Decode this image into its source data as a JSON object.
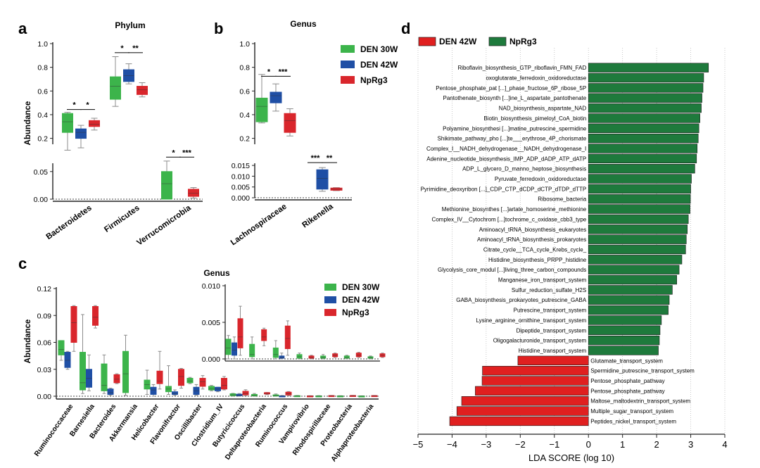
{
  "colors": {
    "den30w": "#3cb44b",
    "den42w": "#1f4fa5",
    "nprg3": "#d9262c",
    "lda_den42w": "#e02020",
    "lda_nprg3": "#1e7a3c"
  },
  "chart_data": [
    {
      "panel": "a",
      "type": "box",
      "title": "Phylum",
      "ylabel": "Abundance",
      "series_names": [
        "DEN 30W",
        "DEN 42W",
        "NpRg3"
      ],
      "upper_ticks": [
        "1.0",
        "0.8",
        "0.6",
        "0.4",
        "0.2"
      ],
      "lower_ticks": [
        "0.05",
        "0.00"
      ],
      "ylim_upper": [
        0.15,
        1.0
      ],
      "ylim_lower": [
        0.0,
        0.065
      ],
      "categories": [
        "Bacteroidetes",
        "Firmicutes",
        "Verrucomicrobia"
      ],
      "segment": [
        "upper",
        "upper",
        "lower"
      ],
      "boxes": [
        [
          {
            "min": 0.1,
            "q1": 0.25,
            "med": 0.34,
            "q3": 0.41,
            "max": 0.42
          },
          {
            "min": 0.12,
            "q1": 0.2,
            "med": 0.25,
            "q3": 0.28,
            "max": 0.31
          },
          {
            "min": 0.27,
            "q1": 0.3,
            "med": 0.32,
            "q3": 0.35,
            "max": 0.37
          }
        ],
        [
          {
            "min": 0.47,
            "q1": 0.53,
            "med": 0.64,
            "q3": 0.72,
            "max": 0.89
          },
          {
            "min": 0.66,
            "q1": 0.68,
            "med": 0.73,
            "q3": 0.78,
            "max": 0.83
          },
          {
            "min": 0.55,
            "q1": 0.57,
            "med": 0.61,
            "q3": 0.64,
            "max": 0.67
          }
        ],
        [
          {
            "min": 0.0,
            "q1": 0.0,
            "med": 0.028,
            "q3": 0.05,
            "max": 0.069
          },
          null,
          {
            "min": 0.002,
            "q1": 0.005,
            "med": 0.011,
            "q3": 0.018,
            "max": 0.021
          }
        ]
      ],
      "significance": [
        {
          "cat": 0,
          "pair": [
            0,
            1
          ],
          "label": "*",
          "y": 0.42,
          "seg": "upper"
        },
        {
          "cat": 0,
          "pair": [
            1,
            2
          ],
          "label": "*",
          "y": 0.42,
          "seg": "upper"
        },
        {
          "cat": 1,
          "pair": [
            0,
            1
          ],
          "label": "*",
          "y": 0.9,
          "seg": "upper"
        },
        {
          "cat": 1,
          "pair": [
            1,
            2
          ],
          "label": "**",
          "y": 0.9,
          "seg": "upper"
        },
        {
          "cat": 2,
          "pair": [
            0,
            1
          ],
          "label": "*",
          "y": 0.071,
          "seg": "lower"
        },
        {
          "cat": 2,
          "pair": [
            1,
            2
          ],
          "label": "***",
          "y": 0.071,
          "seg": "lower"
        }
      ]
    },
    {
      "panel": "b",
      "type": "box",
      "title": "Genus",
      "series_names": [
        "DEN 30W",
        "DEN 42W",
        "NpRg3"
      ],
      "upper_ticks": [
        "1.0",
        "0.8",
        "0.6",
        "0.4",
        "0.2"
      ],
      "lower_ticks": [
        "0.015",
        "0.010",
        "0.005",
        "0.000"
      ],
      "ylim_upper": [
        0.15,
        1.0
      ],
      "ylim_lower": [
        0.0,
        0.016
      ],
      "categories": [
        "Lachnospiraceae",
        "Rikenella"
      ],
      "segment": [
        "upper",
        "lower"
      ],
      "boxes": [
        [
          {
            "min": 0.33,
            "q1": 0.34,
            "med": 0.47,
            "q3": 0.54,
            "max": 0.74
          },
          {
            "min": 0.43,
            "q1": 0.5,
            "med": 0.56,
            "q3": 0.59,
            "max": 0.66
          },
          {
            "min": 0.22,
            "q1": 0.25,
            "med": 0.35,
            "q3": 0.41,
            "max": 0.45
          }
        ],
        [
          null,
          {
            "min": 0.003,
            "q1": 0.004,
            "med": 0.009,
            "q3": 0.013,
            "max": 0.014
          },
          {
            "min": 0.0033,
            "q1": 0.0035,
            "med": 0.004,
            "q3": 0.0045,
            "max": 0.0047
          }
        ]
      ],
      "significance": [
        {
          "cat": 0,
          "pair": [
            0,
            1
          ],
          "label": "*",
          "y": 0.7,
          "seg": "upper"
        },
        {
          "cat": 0,
          "pair": [
            1,
            2
          ],
          "label": "***",
          "y": 0.7,
          "seg": "upper"
        },
        {
          "cat": 1,
          "pair": [
            0,
            1
          ],
          "label": "***",
          "y": 0.015,
          "seg": "lower"
        },
        {
          "cat": 1,
          "pair": [
            1,
            2
          ],
          "label": "**",
          "y": 0.015,
          "seg": "lower"
        }
      ]
    },
    {
      "panel": "c",
      "type": "box",
      "ylabel": "Abundance",
      "series_names": [
        "DEN 30W",
        "DEN 42W",
        "NpRg3"
      ],
      "ticks": [
        "0.12",
        "0.09",
        "0.06",
        "0.03",
        "0.00"
      ],
      "ylim": [
        0,
        0.12
      ],
      "categories": [
        "Ruminococcaceae",
        "Barnesiella",
        "Bacteroides",
        "Akkermansia",
        "Helicobacter",
        "Flavonifractor",
        "Oscillibacter",
        "Clostridium_IV",
        "Butyricicoccus",
        "Deltaproteobacteria",
        "Ruminococcus",
        "Vampirovibrio",
        "Rhodospirillaceae",
        "Proteobacteria",
        "Alphaproteobacteria"
      ],
      "boxes": [
        [
          {
            "min": 0.04,
            "q1": 0.046,
            "med": 0.052,
            "q3": 0.062,
            "max": 0.062
          },
          {
            "min": 0.03,
            "q1": 0.032,
            "med": 0.04,
            "q3": 0.049,
            "max": 0.05
          },
          {
            "min": 0.05,
            "q1": 0.06,
            "med": 0.082,
            "q3": 0.1,
            "max": 0.101
          }
        ],
        [
          {
            "min": 0.003,
            "q1": 0.007,
            "med": 0.015,
            "q3": 0.049,
            "max": 0.091
          },
          {
            "min": 0.006,
            "q1": 0.01,
            "med": 0.02,
            "q3": 0.03,
            "max": 0.046
          },
          {
            "min": 0.076,
            "q1": 0.079,
            "med": 0.088,
            "q3": 0.1,
            "max": 0.101
          }
        ],
        [
          {
            "min": 0.003,
            "q1": 0.006,
            "med": 0.012,
            "q3": 0.036,
            "max": 0.046
          },
          {
            "min": 0.001,
            "q1": 0.002,
            "med": 0.004,
            "q3": 0.008,
            "max": 0.009
          },
          {
            "min": 0.014,
            "q1": 0.015,
            "med": 0.019,
            "q3": 0.024,
            "max": 0.025
          }
        ],
        [
          {
            "min": 0.001,
            "q1": 0.004,
            "med": 0.025,
            "q3": 0.05,
            "max": 0.068
          },
          null,
          null
        ],
        [
          {
            "min": 0.002,
            "q1": 0.008,
            "med": 0.013,
            "q3": 0.018,
            "max": 0.029
          },
          {
            "min": 0.0,
            "q1": 0.002,
            "med": 0.007,
            "q3": 0.01,
            "max": 0.013
          },
          {
            "min": 0.008,
            "q1": 0.014,
            "med": 0.017,
            "q3": 0.028,
            "max": 0.05
          }
        ],
        [
          {
            "min": 0.002,
            "q1": 0.005,
            "med": 0.008,
            "q3": 0.011,
            "max": 0.034
          },
          {
            "min": 0.001,
            "q1": 0.002,
            "med": 0.003,
            "q3": 0.005,
            "max": 0.007
          },
          {
            "min": 0.009,
            "q1": 0.012,
            "med": 0.022,
            "q3": 0.03,
            "max": 0.031
          }
        ],
        [
          {
            "min": 0.014,
            "q1": 0.015,
            "med": 0.017,
            "q3": 0.02,
            "max": 0.021
          },
          {
            "min": 0.001,
            "q1": 0.002,
            "med": 0.006,
            "q3": 0.01,
            "max": 0.013
          },
          {
            "min": 0.008,
            "q1": 0.011,
            "med": 0.016,
            "q3": 0.02,
            "max": 0.023
          }
        ],
        [
          {
            "min": 0.006,
            "q1": 0.007,
            "med": 0.008,
            "q3": 0.011,
            "max": 0.012
          },
          {
            "min": 0.005,
            "q1": 0.006,
            "med": 0.008,
            "q3": 0.01,
            "max": 0.01
          },
          {
            "min": 0.007,
            "q1": 0.008,
            "med": 0.012,
            "q3": 0.02,
            "max": 0.022
          }
        ],
        [
          {
            "min": 0.0,
            "q1": 0.0006,
            "med": 0.0015,
            "q3": 0.0027,
            "max": 0.0032
          },
          {
            "min": 0.0,
            "q1": 0.0005,
            "med": 0.0012,
            "q3": 0.0022,
            "max": 0.003
          },
          {
            "min": 0.0005,
            "q1": 0.0015,
            "med": 0.003,
            "q3": 0.0055,
            "max": 0.0072
          }
        ],
        [
          {
            "min": 0.0,
            "q1": 0.0003,
            "med": 0.0006,
            "q3": 0.002,
            "max": 0.003
          },
          null,
          {
            "min": 0.0018,
            "q1": 0.0025,
            "med": 0.003,
            "q3": 0.004,
            "max": 0.0042
          }
        ],
        [
          {
            "min": 0.0,
            "q1": 0.0002,
            "med": 0.0006,
            "q3": 0.0015,
            "max": 0.0025
          },
          {
            "min": 0.0,
            "q1": 0.0001,
            "med": 0.0002,
            "q3": 0.0004,
            "max": 0.0008
          },
          {
            "min": 0.0005,
            "q1": 0.0014,
            "med": 0.0028,
            "q3": 0.0045,
            "max": 0.0052
          }
        ],
        [
          {
            "min": 0.0,
            "q1": 0.0001,
            "med": 0.0003,
            "q3": 0.0006,
            "max": 0.0008
          },
          null,
          {
            "min": 0.0,
            "q1": 0.0001,
            "med": 0.0002,
            "q3": 0.0004,
            "max": 0.0005
          }
        ],
        [
          {
            "min": 0.0,
            "q1": 0.0001,
            "med": 0.0002,
            "q3": 0.0004,
            "max": 0.0006
          },
          null,
          {
            "min": 0.0002,
            "q1": 0.0003,
            "med": 0.0005,
            "q3": 0.0007,
            "max": 0.0008
          }
        ],
        [
          {
            "min": 0.0,
            "q1": 0.0001,
            "med": 0.0002,
            "q3": 0.0004,
            "max": 0.0005
          },
          null,
          {
            "min": 0.0002,
            "q1": 0.0003,
            "med": 0.0005,
            "q3": 0.0008,
            "max": 0.0009
          }
        ],
        [
          {
            "min": 0.0,
            "q1": 0.0001,
            "med": 0.0002,
            "q3": 0.0003,
            "max": 0.0004
          },
          null,
          {
            "min": 0.0002,
            "q1": 0.0003,
            "med": 0.0005,
            "q3": 0.0007,
            "max": 0.0008
          }
        ]
      ],
      "inset": {
        "title": "Genus",
        "ticks": [
          "0.010",
          "0.005",
          "0.000"
        ],
        "ylim": [
          0,
          0.01
        ],
        "first_category": 8
      }
    },
    {
      "panel": "d",
      "type": "bar",
      "orientation": "horizontal",
      "xlabel": "LDA SCORE (log 10)",
      "xlim": [
        -5,
        4
      ],
      "x_ticks": [
        "−5",
        "−4",
        "−3",
        "−2",
        "−1",
        "0",
        "1",
        "2",
        "3",
        "4"
      ],
      "legend": [
        "DEN 42W",
        "NpRg3"
      ],
      "series": [
        {
          "name": "NpRg3",
          "labels": [
            "Riboflavin_biosynthesis_GTP_riboflavin_FMN_FAD",
            "oxoglutarate_ferredoxin_oxidoreductase",
            "Pentose_phosphate_pat [...]_phase_fructose_6P_ribose_5P",
            "Pantothenate_biosynth [...]ine_L_aspartate_pantothenate",
            "NAD_biosynthesis_aspartate_NAD",
            "Biotin_biosynthesis_pimeloyl_CoA_biotin",
            "Polyamine_biosynthesi [...]matine_putrescine_spermidine",
            "Shikimate_pathway_pho [...]te___erythrose_4P_chorismate",
            "Complex_I__NADH_dehydrogenase__NADH_dehydrogenase_I",
            "Adenine_nucleotide_biosynthesis_IMP_ADP_dADP_ATP_dATP",
            "ADP_L_glycero_D_manno_heptose_biosynthesis",
            "Pyruvate_ferredoxin_oxidoreductase",
            "Pyrimidine_deoxyribon [...]_CDP_CTP_dCDP_dCTP_dTDP_dTTP",
            "Ribosome_bacteria",
            "Methionine_biosynthes [...]artate_homoserine_methionine",
            "Complex_IV__Cytochrom [...]tochrome_c_oxidase_cbb3_type",
            "Aminoacyl_tRNA_biosynthesis_eukaryotes",
            "Aminoacyl_tRNA_biosynthesis_prokaryotes",
            "Citrate_cycle__TCA_cycle_Krebs_cycle_",
            "Histidine_biosynthesis_PRPP_histidine",
            "Glycolysis_core_modul [...]living_three_carbon_compounds",
            "Manganese_iron_transport_system",
            "Sulfur_reduction_sulfate_H2S",
            "GABA_biosynthesis_prokaryotes_putrescine_GABA",
            "Putrescine_transport_system",
            "Lysine_arginine_ornithine_transport_system",
            "Dipeptide_transport_system",
            "Oligogalacturonide_transport_system",
            "Histidine_transport_system"
          ],
          "values": [
            3.52,
            3.38,
            3.36,
            3.33,
            3.31,
            3.27,
            3.24,
            3.22,
            3.19,
            3.17,
            3.12,
            3.02,
            3.0,
            2.99,
            2.98,
            2.93,
            2.9,
            2.87,
            2.85,
            2.74,
            2.66,
            2.59,
            2.46,
            2.37,
            2.34,
            2.14,
            2.1,
            2.08,
            2.05
          ]
        },
        {
          "name": "DEN 42W",
          "labels": [
            "Glutamate_transport_system",
            "Spermidine_putrescine_transport_system",
            "Pentose_phosphate_pathway",
            "Pentose_phosphate_pathway",
            "Maltose_maltodextrin_transport_system",
            "Multiple_sugar_transport_system",
            "Peptides_nickel_transport_system"
          ],
          "values": [
            -2.07,
            -3.11,
            -3.12,
            -3.32,
            -3.72,
            -3.86,
            -4.07
          ]
        }
      ]
    }
  ]
}
